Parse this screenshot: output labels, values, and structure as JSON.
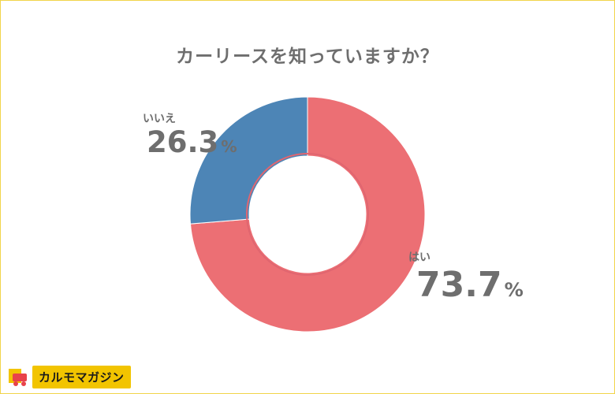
{
  "chart_data": {
    "type": "pie",
    "title": "カーリースを知っていますか？",
    "categories": [
      "はい",
      "いいえ"
    ],
    "values": [
      73.7,
      26.3
    ],
    "unit": "%",
    "colors": [
      "#ec6f74",
      "#4d85b6"
    ],
    "legend": "none",
    "style": "donut"
  },
  "labels": {
    "yes_label": "はい",
    "yes_value": "73.7",
    "no_label": "いいえ",
    "no_value": "26.3",
    "unit": "%"
  },
  "brand": {
    "name": "カルモマガジン",
    "accent": "#f2c400",
    "mark_colors": [
      "#f2c400",
      "#e8424a"
    ]
  }
}
